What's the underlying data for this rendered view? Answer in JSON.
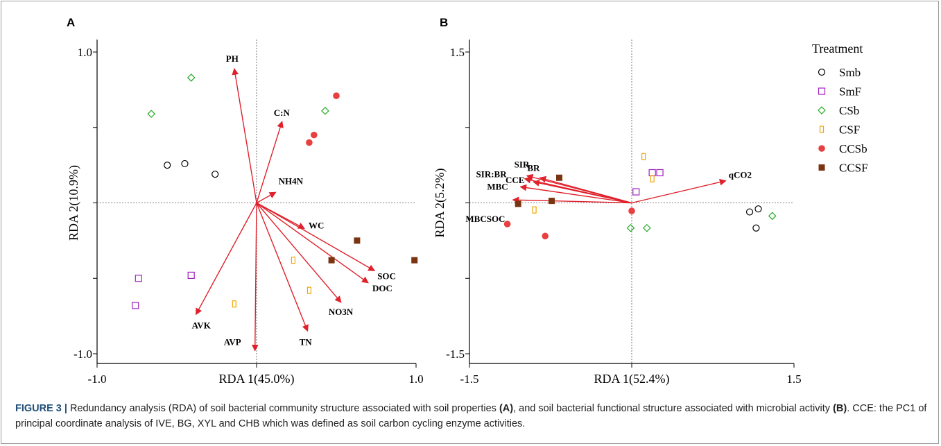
{
  "caption": {
    "figure_label": "FIGURE 3 |",
    "t1": " Redundancy analysis (RDA) of soil bacterial community structure associated with soil properties ",
    "b1": "(A)",
    "t2": ", and soil bacterial functional structure associated with microbial activity ",
    "b2": "(B)",
    "t3": ". CCE: the PC1 of principal coordinate analysis of IVE, BG, XYL and CHB which was defined as soil carbon cycling enzyme activities."
  },
  "legend": {
    "title": "Treatment",
    "items": [
      {
        "label": "Smb",
        "marker": "circle-open",
        "color": "#000000"
      },
      {
        "label": "SmF",
        "marker": "square-open",
        "color": "#a020c0"
      },
      {
        "label": "CSb",
        "marker": "diamond-open",
        "color": "#22aa22"
      },
      {
        "label": "CSF",
        "marker": "rect-open",
        "color": "#f0a500"
      },
      {
        "label": "CCSb",
        "marker": "circle-filled",
        "color": "#e84040"
      },
      {
        "label": "CCSF",
        "marker": "square-filled",
        "color": "#7a3510"
      }
    ]
  },
  "colors": {
    "arrow": "#e0202a",
    "axis": "#000000"
  },
  "chart_data": [
    {
      "panel": "A",
      "type": "scatter",
      "xlabel": "RDA 1(45.0%)",
      "ylabel": "RDA 2(10.9%)",
      "xlim": [
        -1.0,
        1.0
      ],
      "ylim": [
        -1.0,
        1.0
      ],
      "xticks": [
        "-1.0",
        "1.0"
      ],
      "yticks": [
        "1.0",
        "-1.0"
      ],
      "vectors": [
        {
          "label": "PH",
          "x": -0.14,
          "y": 0.89
        },
        {
          "label": "C:N",
          "x": 0.16,
          "y": 0.54
        },
        {
          "label": "NH4N",
          "x": 0.12,
          "y": 0.07
        },
        {
          "label": "WC",
          "x": 0.3,
          "y": -0.17
        },
        {
          "label": "SOC",
          "x": 0.74,
          "y": -0.45
        },
        {
          "label": "DOC",
          "x": 0.7,
          "y": -0.53
        },
        {
          "label": "NO3N",
          "x": 0.53,
          "y": -0.66
        },
        {
          "label": "TN",
          "x": 0.32,
          "y": -0.85
        },
        {
          "label": "AVK",
          "x": -0.38,
          "y": -0.74
        },
        {
          "label": "AVP",
          "x": -0.01,
          "y": -0.98
        }
      ],
      "series": [
        {
          "name": "Smb",
          "points": [
            [
              -0.56,
              0.25
            ],
            [
              -0.45,
              0.26
            ],
            [
              -0.26,
              0.19
            ]
          ]
        },
        {
          "name": "SmF",
          "points": [
            [
              -0.74,
              -0.5
            ],
            [
              -0.41,
              -0.48
            ],
            [
              -0.76,
              -0.68
            ]
          ]
        },
        {
          "name": "CSb",
          "points": [
            [
              -0.41,
              0.83
            ],
            [
              -0.66,
              0.59
            ],
            [
              0.43,
              0.61
            ]
          ]
        },
        {
          "name": "CSF",
          "points": [
            [
              0.23,
              -0.38
            ],
            [
              0.33,
              -0.58
            ],
            [
              -0.14,
              -0.67
            ]
          ]
        },
        {
          "name": "CCSb",
          "points": [
            [
              0.5,
              0.71
            ],
            [
              0.36,
              0.45
            ],
            [
              0.33,
              0.4
            ]
          ]
        },
        {
          "name": "CCSF",
          "points": [
            [
              0.63,
              -0.25
            ],
            [
              0.47,
              -0.38
            ],
            [
              0.99,
              -0.38
            ]
          ]
        }
      ]
    },
    {
      "panel": "B",
      "type": "scatter",
      "xlabel": "RDA 1(52.4%)",
      "ylabel": "RDA 2(5.2%)",
      "xlim": [
        -1.5,
        1.5
      ],
      "ylim": [
        -1.5,
        1.5
      ],
      "xticks": [
        "-1.5",
        "1.5"
      ],
      "yticks": [
        "1.5",
        "-1.5"
      ],
      "vectors": [
        {
          "label": "SIR",
          "x": -0.97,
          "y": 0.27
        },
        {
          "label": "BR",
          "x": -0.85,
          "y": 0.25
        },
        {
          "label": "SIR:BR",
          "x": -0.99,
          "y": 0.24
        },
        {
          "label": "CCE",
          "x": -0.91,
          "y": 0.21
        },
        {
          "label": "MBC",
          "x": -1.03,
          "y": 0.16
        },
        {
          "label": "MBCSOC",
          "x": -1.1,
          "y": 0.03
        },
        {
          "label": "qCO2",
          "x": 0.87,
          "y": 0.22
        }
      ],
      "series": [
        {
          "name": "Smb",
          "points": [
            [
              1.09,
              -0.09
            ],
            [
              1.17,
              -0.06
            ],
            [
              1.15,
              -0.25
            ]
          ]
        },
        {
          "name": "SmF",
          "points": [
            [
              0.19,
              0.3
            ],
            [
              0.26,
              0.3
            ],
            [
              0.04,
              0.11
            ]
          ]
        },
        {
          "name": "CSb",
          "points": [
            [
              1.3,
              -0.13
            ],
            [
              0.14,
              -0.25
            ],
            [
              -0.01,
              -0.25
            ]
          ]
        },
        {
          "name": "CSF",
          "points": [
            [
              0.11,
              0.46
            ],
            [
              0.19,
              0.24
            ],
            [
              -0.9,
              -0.07
            ]
          ]
        },
        {
          "name": "CCSb",
          "points": [
            [
              0.0,
              -0.08
            ],
            [
              -1.15,
              -0.21
            ],
            [
              -0.8,
              -0.33
            ]
          ]
        },
        {
          "name": "CCSF",
          "points": [
            [
              -0.67,
              0.25
            ],
            [
              -0.74,
              0.02
            ],
            [
              -1.05,
              -0.01
            ]
          ]
        }
      ]
    }
  ]
}
